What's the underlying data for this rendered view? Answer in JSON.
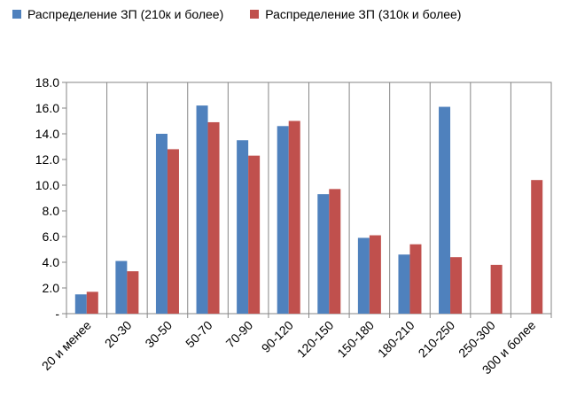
{
  "chart_data": {
    "type": "bar",
    "title": "",
    "xlabel": "",
    "ylabel": "",
    "ylim": [
      0,
      18
    ],
    "yticks": [
      "-",
      "2.0",
      "4.0",
      "6.0",
      "8.0",
      "10.0",
      "12.0",
      "14.0",
      "16.0",
      "18.0"
    ],
    "categories": [
      "20 и менее",
      "20-30",
      "30-50",
      "50-70",
      "70-90",
      "90-120",
      "120-150",
      "150-180",
      "180-210",
      "210-250",
      "250-300",
      "300 и более"
    ],
    "series": [
      {
        "name": "Распределение ЗП (210к и более)",
        "color": "#4F81BD",
        "values": [
          1.5,
          4.1,
          14.0,
          16.2,
          13.5,
          14.6,
          9.3,
          5.9,
          4.6,
          16.1,
          0,
          0
        ]
      },
      {
        "name": "Распределение ЗП (310к и более)",
        "color": "#C0504D",
        "values": [
          1.7,
          3.3,
          12.8,
          14.9,
          12.3,
          15.0,
          9.7,
          6.1,
          5.4,
          4.4,
          3.8,
          10.4
        ]
      }
    ],
    "grid": "vertical-category-separators",
    "legend_position": "top"
  }
}
